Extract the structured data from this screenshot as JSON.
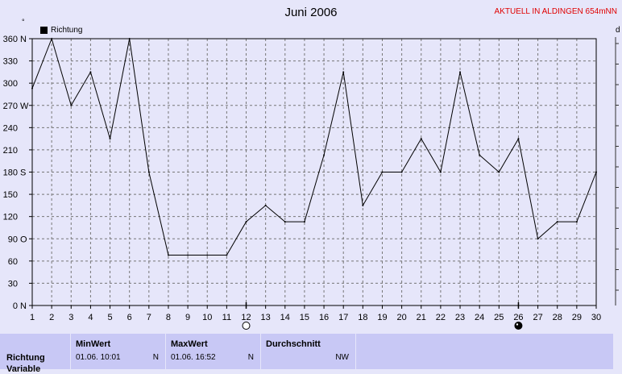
{
  "chart_data": {
    "type": "line",
    "title": "Juni 2006",
    "station": "AKTUELL IN ALDINGEN 654mNN",
    "legend": [
      {
        "name": "Richtung",
        "color": "#000000"
      }
    ],
    "x_ticks": [
      "1",
      "2",
      "3",
      "4",
      "5",
      "6",
      "7",
      "8",
      "9",
      "10",
      "11",
      "12",
      "13",
      "14",
      "15",
      "16",
      "17",
      "18",
      "19",
      "20",
      "21",
      "22",
      "23",
      "24",
      "25",
      "26",
      "27",
      "28",
      "29",
      "30"
    ],
    "y_ticks": [
      {
        "value": 0,
        "label": "0",
        "dir": "N"
      },
      {
        "value": 30,
        "label": "30",
        "dir": ""
      },
      {
        "value": 60,
        "label": "60",
        "dir": ""
      },
      {
        "value": 90,
        "label": "90",
        "dir": "O"
      },
      {
        "value": 120,
        "label": "120",
        "dir": ""
      },
      {
        "value": 150,
        "label": "150",
        "dir": ""
      },
      {
        "value": 180,
        "label": "180",
        "dir": "S"
      },
      {
        "value": 210,
        "label": "210",
        "dir": ""
      },
      {
        "value": 240,
        "label": "240",
        "dir": ""
      },
      {
        "value": 270,
        "label": "270",
        "dir": "W"
      },
      {
        "value": 300,
        "label": "300",
        "dir": ""
      },
      {
        "value": 330,
        "label": "330",
        "dir": ""
      },
      {
        "value": 360,
        "label": "360",
        "dir": "N"
      }
    ],
    "ylim": [
      0,
      360
    ],
    "xlim": [
      1,
      30
    ],
    "grid": true,
    "y_unit_symbol": "°",
    "right_axis_label": "d",
    "series": [
      {
        "name": "Richtung",
        "x": [
          1,
          2,
          3,
          4,
          5,
          6,
          7,
          8,
          9,
          10,
          11,
          12,
          13,
          14,
          15,
          16,
          17,
          18,
          19,
          20,
          21,
          22,
          23,
          24,
          25,
          26,
          27,
          28,
          29,
          30
        ],
        "values": [
          293,
          360,
          270,
          315,
          225,
          360,
          180,
          68,
          68,
          68,
          68,
          113,
          135,
          113,
          113,
          203,
          315,
          135,
          180,
          180,
          225,
          180,
          315,
          203,
          180,
          225,
          90,
          113,
          113,
          180
        ]
      }
    ],
    "moon_phases": [
      {
        "day": 12,
        "phase": "full"
      },
      {
        "day": 26,
        "phase": "new"
      }
    ]
  },
  "footer": {
    "row_labels": [
      "Richtung",
      "Variable"
    ],
    "min": {
      "header": "MinWert",
      "date": "01.06.  10:01",
      "value": "N"
    },
    "max": {
      "header": "MaxWert",
      "date": "01.06.  16:52",
      "value": "N"
    },
    "avg": {
      "header": "Durchschnitt",
      "value": "NW"
    }
  }
}
